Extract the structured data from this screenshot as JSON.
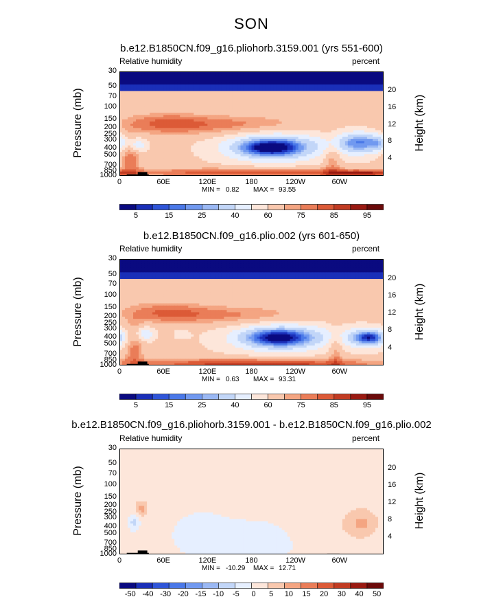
{
  "main_title": "SON",
  "colors": {
    "abs_palette": [
      "#0a0a80",
      "#1a2fb8",
      "#2f55d8",
      "#4a78e8",
      "#7199f0",
      "#9ab8f4",
      "#c2d6f8",
      "#e6efff",
      "#fde6da",
      "#f9c8ae",
      "#f4a582",
      "#ea7d58",
      "#dc5a37",
      "#c13b22",
      "#9a1a12",
      "#6b0a0a"
    ],
    "diff_palette": [
      "#0a0a80",
      "#1a2fb8",
      "#2f55d8",
      "#4a78e8",
      "#7199f0",
      "#9ab8f4",
      "#c2d6f8",
      "#e6efff",
      "#fde6da",
      "#f9c8ae",
      "#f4a582",
      "#ea7d58",
      "#dc5a37",
      "#c13b22",
      "#9a1a12",
      "#6b0a0a"
    ],
    "topography": "#000000"
  },
  "chart_data": [
    {
      "type": "heatmap",
      "title": "b.e12.B1850CN.f09_g16.pliohorb.3159.001 (yrs 551-600)",
      "left_label": "Relative humidity",
      "right_label": "percent",
      "ylabel": "Pressure (mb)",
      "ylabel_right": "Height (km)",
      "x_ticks": [
        "0",
        "60E",
        "120E",
        "180",
        "120W",
        "60W"
      ],
      "y_ticks": [
        "30",
        "50",
        "70",
        "100",
        "150",
        "200",
        "250",
        "300",
        "400",
        "500",
        "700",
        "850",
        "1000"
      ],
      "y_ticks_right": [
        "20",
        "16",
        "12",
        "8",
        "4"
      ],
      "xlim": [
        0,
        360
      ],
      "ylim_mb": [
        1000,
        30
      ],
      "min_label": "MIN =",
      "min_value": "0.82",
      "max_label": "MAX =",
      "max_value": "93.55",
      "colorbar_labels": [
        "5",
        "15",
        "25",
        "40",
        "60",
        "75",
        "85",
        "95"
      ],
      "colorbar_levels": [
        5,
        10,
        15,
        20,
        25,
        30,
        40,
        50,
        60,
        70,
        75,
        80,
        85,
        90,
        95
      ],
      "field": {
        "background": 62,
        "features": [
          {
            "lon": 210,
            "p": 380,
            "dlon": 45,
            "dp": 140,
            "value": -50
          },
          {
            "lon": 205,
            "p": 390,
            "dlon": 25,
            "dp": 70,
            "value": -20
          },
          {
            "lon": 325,
            "p": 330,
            "dlon": 22,
            "dp": 100,
            "value": -40
          },
          {
            "lon": 355,
            "p": 330,
            "dlon": 12,
            "dp": 70,
            "value": -20
          },
          {
            "lon": 25,
            "p": 350,
            "dlon": 8,
            "dp": 60,
            "value": -25
          },
          {
            "lon": 180,
            "p": 900,
            "dlon": 140,
            "dp": 110,
            "value": 22
          },
          {
            "lon": 330,
            "p": 920,
            "dlon": 30,
            "dp": 70,
            "value": 20
          },
          {
            "lon": 15,
            "p": 500,
            "dlon": 10,
            "dp": 320,
            "value": 18
          },
          {
            "lon": 290,
            "p": 550,
            "dlon": 8,
            "dp": 300,
            "value": 15
          },
          {
            "lon": 150,
            "p": 180,
            "dlon": 80,
            "dp": 50,
            "value": 15
          },
          {
            "lon": 60,
            "p": 170,
            "dlon": 40,
            "dp": 50,
            "value": 14
          }
        ]
      },
      "topography": [
        {
          "lon0": 10,
          "lon1": 40,
          "mb": 950
        },
        {
          "lon0": 25,
          "lon1": 38,
          "mb": 880
        },
        {
          "lon0": 100,
          "lon1": 170,
          "mb": 990
        },
        {
          "lon0": 283,
          "lon1": 300,
          "mb": 975
        }
      ]
    },
    {
      "type": "heatmap",
      "title": "b.e12.B1850CN.f09_g16.plio.002 (yrs 601-650)",
      "left_label": "Relative humidity",
      "right_label": "percent",
      "ylabel": "Pressure (mb)",
      "ylabel_right": "Height (km)",
      "x_ticks": [
        "0",
        "60E",
        "120E",
        "180",
        "120W",
        "60W"
      ],
      "y_ticks": [
        "30",
        "50",
        "70",
        "100",
        "150",
        "200",
        "250",
        "300",
        "400",
        "500",
        "700",
        "850",
        "1000"
      ],
      "y_ticks_right": [
        "20",
        "16",
        "12",
        "8",
        "4"
      ],
      "xlim": [
        0,
        360
      ],
      "ylim_mb": [
        1000,
        30
      ],
      "min_label": "MIN =",
      "min_value": "0.63",
      "max_label": "MAX =",
      "max_value": "93.31",
      "colorbar_labels": [
        "5",
        "15",
        "25",
        "40",
        "60",
        "75",
        "85",
        "95"
      ],
      "colorbar_levels": [
        5,
        10,
        15,
        20,
        25,
        30,
        40,
        50,
        60,
        70,
        75,
        80,
        85,
        90,
        95
      ],
      "field": {
        "background": 62,
        "features": [
          {
            "lon": 220,
            "p": 400,
            "dlon": 45,
            "dp": 140,
            "value": -48
          },
          {
            "lon": 215,
            "p": 400,
            "dlon": 25,
            "dp": 70,
            "value": -18
          },
          {
            "lon": 340,
            "p": 400,
            "dlon": 22,
            "dp": 100,
            "value": -42
          },
          {
            "lon": 340,
            "p": 400,
            "dlon": 10,
            "dp": 50,
            "value": -15
          },
          {
            "lon": 35,
            "p": 350,
            "dlon": 8,
            "dp": 60,
            "value": -25
          },
          {
            "lon": 85,
            "p": 350,
            "dlon": 7,
            "dp": 40,
            "value": -10
          },
          {
            "lon": 180,
            "p": 910,
            "dlon": 140,
            "dp": 110,
            "value": 20
          },
          {
            "lon": 200,
            "p": 970,
            "dlon": 100,
            "dp": 50,
            "value": 10
          },
          {
            "lon": 20,
            "p": 500,
            "dlon": 10,
            "dp": 320,
            "value": 18
          },
          {
            "lon": 295,
            "p": 550,
            "dlon": 7,
            "dp": 300,
            "value": 14
          },
          {
            "lon": 150,
            "p": 190,
            "dlon": 80,
            "dp": 50,
            "value": 14
          },
          {
            "lon": 60,
            "p": 170,
            "dlon": 40,
            "dp": 50,
            "value": 13
          }
        ]
      },
      "topography": [
        {
          "lon0": 10,
          "lon1": 40,
          "mb": 950
        },
        {
          "lon0": 25,
          "lon1": 38,
          "mb": 880
        },
        {
          "lon0": 100,
          "lon1": 170,
          "mb": 990
        },
        {
          "lon0": 283,
          "lon1": 300,
          "mb": 975
        }
      ]
    },
    {
      "type": "heatmap",
      "title": "b.e12.B1850CN.f09_g16.pliohorb.3159.001 - b.e12.B1850CN.f09_g16.plio.002",
      "left_label": "Relative humidity",
      "right_label": "percent",
      "ylabel": "Pressure (mb)",
      "ylabel_right": "Height (km)",
      "x_ticks": [
        "0",
        "60E",
        "120E",
        "180",
        "120W",
        "60W"
      ],
      "y_ticks": [
        "30",
        "50",
        "70",
        "100",
        "150",
        "200",
        "250",
        "300",
        "400",
        "500",
        "700",
        "850",
        "1000"
      ],
      "y_ticks_right": [
        "20",
        "16",
        "12",
        "8",
        "4"
      ],
      "xlim": [
        0,
        360
      ],
      "ylim_mb": [
        1000,
        30
      ],
      "min_label": "MIN =",
      "min_value": "-10.29",
      "max_label": "MAX =",
      "max_value": "12.71",
      "colorbar_labels": [
        "-50",
        "-40",
        "-30",
        "-20",
        "-15",
        "-10",
        "-5",
        "0",
        "5",
        "10",
        "15",
        "20",
        "30",
        "40",
        "50"
      ],
      "colorbar_levels": [
        -50,
        -40,
        -30,
        -20,
        -15,
        -10,
        -5,
        0,
        5,
        10,
        15,
        20,
        30,
        40,
        50
      ],
      "field": {
        "background": 2,
        "features": [
          {
            "lon": 190,
            "p": 600,
            "dlon": 60,
            "dp": 350,
            "value": -5
          },
          {
            "lon": 110,
            "p": 500,
            "dlon": 25,
            "dp": 350,
            "value": -4
          },
          {
            "lon": 20,
            "p": 350,
            "dlon": 5,
            "dp": 70,
            "value": -9
          },
          {
            "lon": 30,
            "p": 220,
            "dlon": 6,
            "dp": 40,
            "value": 10
          },
          {
            "lon": 330,
            "p": 360,
            "dlon": 15,
            "dp": 140,
            "value": 9
          },
          {
            "lon": 265,
            "p": 450,
            "dlon": 30,
            "dp": 250,
            "value": 4
          },
          {
            "lon": 180,
            "p": 70,
            "dlon": 200,
            "dp": 40,
            "value": 3
          }
        ]
      },
      "topography": [
        {
          "lon0": 10,
          "lon1": 40,
          "mb": 950
        },
        {
          "lon0": 25,
          "lon1": 38,
          "mb": 880
        },
        {
          "lon0": 100,
          "lon1": 170,
          "mb": 990
        },
        {
          "lon0": 283,
          "lon1": 300,
          "mb": 975
        }
      ]
    }
  ]
}
